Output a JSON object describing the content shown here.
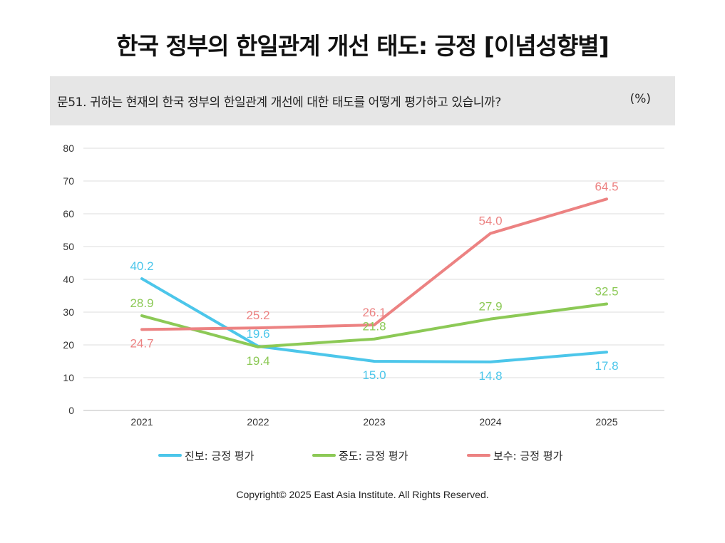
{
  "title": "한국 정부의 한일관계 개선 태도: 긍정 [이념성향별]",
  "question": "문51. 귀하는 현재의 한국 정부의 한일관계 개선에 대한 태도를 어떻게 평가하고 있습니까?",
  "unit": "(%)",
  "copyright": "Copyright© 2025 East Asia Institute. All Rights Reserved.",
  "chart_data": {
    "type": "line",
    "title": "한국 정부의 한일관계 개선 태도: 긍정 [이념성향별]",
    "xlabel": "",
    "ylabel": "",
    "categories": [
      "2021",
      "2022",
      "2023",
      "2024",
      "2025"
    ],
    "ylim": [
      0,
      80
    ],
    "yticks": [
      0,
      10,
      20,
      30,
      40,
      50,
      60,
      70,
      80
    ],
    "grid": true,
    "legend_position": "bottom",
    "series": [
      {
        "name": "진보: 긍정 평가",
        "color": "#4cc6ea",
        "values": [
          40.2,
          19.6,
          15.0,
          14.8,
          17.8
        ],
        "labels": [
          "40.2",
          "19.6",
          "15.0",
          "14.8",
          "17.8"
        ],
        "label_side": [
          "above",
          "above",
          "below",
          "below",
          "below"
        ]
      },
      {
        "name": "중도: 긍정 평가",
        "color": "#8cc956",
        "values": [
          28.9,
          19.4,
          21.8,
          27.9,
          32.5
        ],
        "labels": [
          "28.9",
          "19.4",
          "21.8",
          "27.9",
          "32.5"
        ],
        "label_side": [
          "above",
          "below",
          "above",
          "above",
          "above"
        ]
      },
      {
        "name": "보수: 긍정 평가",
        "color": "#ec8282",
        "values": [
          24.7,
          25.2,
          26.1,
          54.0,
          64.5
        ],
        "labels": [
          "24.7",
          "25.2",
          "26.1",
          "54.0",
          "64.5"
        ],
        "label_side": [
          "below",
          "above",
          "above",
          "above",
          "above"
        ]
      }
    ]
  }
}
